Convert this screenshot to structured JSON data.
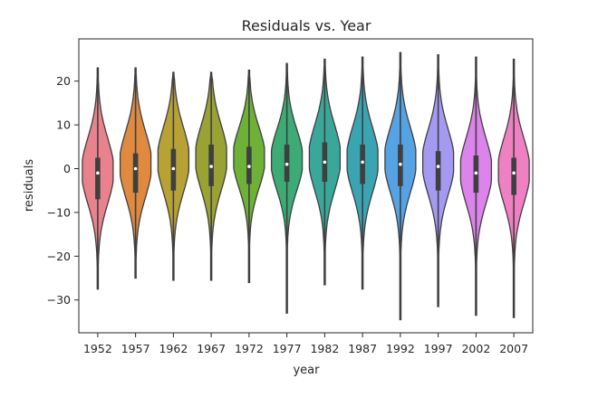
{
  "chart_data": {
    "type": "violin",
    "title": "Residuals vs. Year",
    "xlabel": "year",
    "ylabel": "residuals",
    "ylim": [
      -37,
      30
    ],
    "yticks": [
      20,
      10,
      0,
      -10,
      -20,
      -30
    ],
    "ytick_labels": [
      "20",
      "10",
      "0",
      "−10",
      "−20",
      "−30"
    ],
    "grid": false,
    "series": [
      {
        "category": "1952",
        "color": "#e9828d",
        "min": -27.5,
        "q1": -7.0,
        "median": -1.0,
        "q3": 2.5,
        "max": 23.0,
        "mode": -0.5,
        "spread": 7.5
      },
      {
        "category": "1957",
        "color": "#e08a3f",
        "min": -25.0,
        "q1": -5.5,
        "median": 0.0,
        "q3": 3.5,
        "max": 23.0,
        "mode": 1.0,
        "spread": 7.5
      },
      {
        "category": "1962",
        "color": "#b9a234",
        "min": -25.5,
        "q1": -5.0,
        "median": 0.0,
        "q3": 4.5,
        "max": 22.0,
        "mode": 2.0,
        "spread": 7.5
      },
      {
        "category": "1967",
        "color": "#9aa233",
        "min": -25.5,
        "q1": -4.0,
        "median": 0.5,
        "q3": 5.5,
        "max": 22.0,
        "mode": 2.5,
        "spread": 7.5
      },
      {
        "category": "1972",
        "color": "#6db236",
        "min": -26.0,
        "q1": -3.5,
        "median": 0.5,
        "q3": 5.0,
        "max": 22.5,
        "mode": 2.5,
        "spread": 7.0
      },
      {
        "category": "1977",
        "color": "#3cab76",
        "min": -33.0,
        "q1": -3.0,
        "median": 1.0,
        "q3": 5.5,
        "max": 24.0,
        "mode": 2.0,
        "spread": 7.0
      },
      {
        "category": "1982",
        "color": "#39a89a",
        "min": -26.5,
        "q1": -3.0,
        "median": 1.5,
        "q3": 6.0,
        "max": 25.0,
        "mode": 2.5,
        "spread": 7.5
      },
      {
        "category": "1987",
        "color": "#39a5b2",
        "min": -27.5,
        "q1": -3.5,
        "median": 1.5,
        "q3": 5.5,
        "max": 25.5,
        "mode": 2.0,
        "spread": 7.5
      },
      {
        "category": "1992",
        "color": "#55a3e3",
        "min": -34.5,
        "q1": -4.0,
        "median": 1.0,
        "q3": 5.5,
        "max": 26.5,
        "mode": 2.0,
        "spread": 7.5
      },
      {
        "category": "1997",
        "color": "#a59af2",
        "min": -31.5,
        "q1": -5.0,
        "median": 0.5,
        "q3": 4.0,
        "max": 26.0,
        "mode": 1.5,
        "spread": 7.5
      },
      {
        "category": "2002",
        "color": "#dc83ec",
        "min": -33.5,
        "q1": -5.5,
        "median": -1.0,
        "q3": 3.0,
        "max": 25.5,
        "mode": -0.5,
        "spread": 7.5
      },
      {
        "category": "2007",
        "color": "#ef80c4",
        "min": -34.0,
        "q1": -6.0,
        "median": -1.0,
        "q3": 2.5,
        "max": 25.0,
        "mode": -0.5,
        "spread": 7.5
      }
    ]
  }
}
